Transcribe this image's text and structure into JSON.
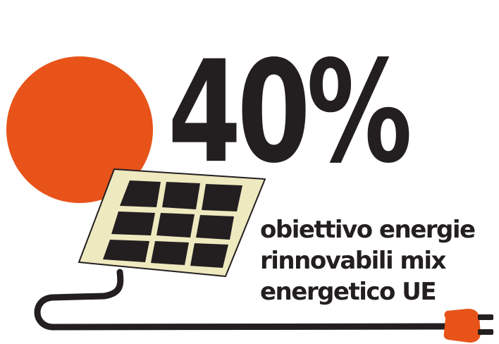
{
  "headline": {
    "value": "40%"
  },
  "caption": {
    "line1": "obiettivo energie",
    "line2": "rinnovabili mix",
    "line3": "energetico UE"
  },
  "colors": {
    "accent": "#e85319",
    "text": "#231f20",
    "panel_frame": "#efe9c0",
    "background": "#ffffff"
  },
  "icons": [
    "sun-icon",
    "solar-panel-icon",
    "cable-icon",
    "plug-icon"
  ]
}
